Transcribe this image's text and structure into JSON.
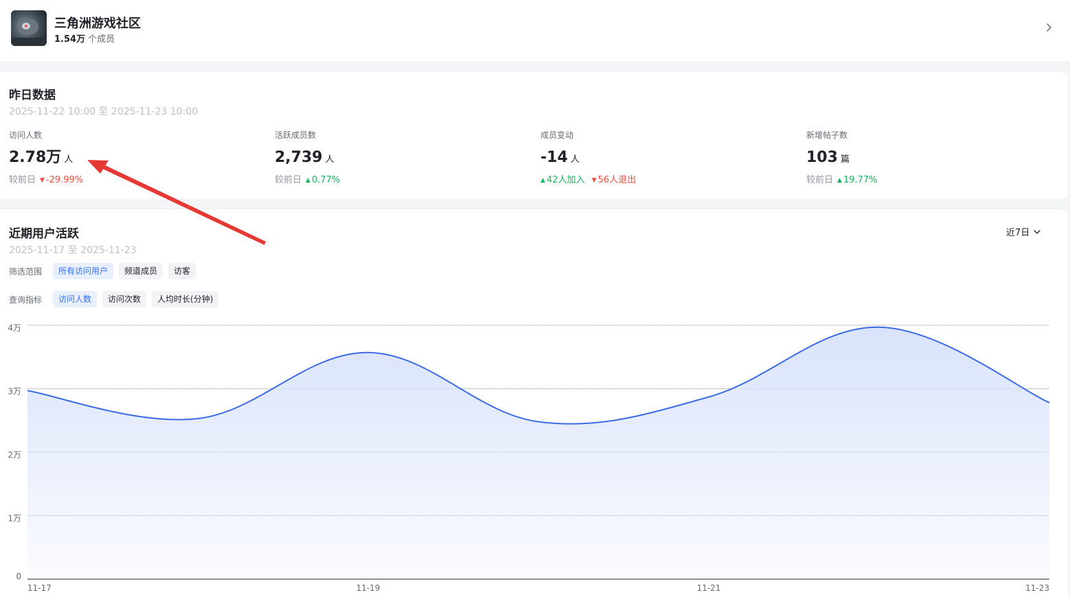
{
  "community": {
    "name": "三角洲游戏社区",
    "member_count": "1.54万",
    "member_suffix": "个成员"
  },
  "yesterday": {
    "title": "昨日数据",
    "range": "2025-11-22 10:00 至 2025-11-23 10:00",
    "metrics": [
      {
        "label": "访问人数",
        "value": "2.78万",
        "unit": "人",
        "compare_label": "较前日",
        "change": "-29.99%",
        "direction": "down"
      },
      {
        "label": "活跃成员数",
        "value": "2,739",
        "unit": "人",
        "compare_label": "较前日",
        "change": "0.77%",
        "direction": "up"
      },
      {
        "label": "成员变动",
        "value": "-14",
        "unit": "人",
        "joined": "42人加入",
        "left": "56人退出"
      },
      {
        "label": "新增帖子数",
        "value": "103",
        "unit": "篇",
        "compare_label": "较前日",
        "change": "19.77%",
        "direction": "up"
      }
    ]
  },
  "activity": {
    "title": "近期用户活跃",
    "range": "2025-11-17 至 2025-11-23",
    "period_select": "近7日",
    "filter_scope": {
      "label": "筛选范围",
      "options": [
        "所有访问用户",
        "频道成员",
        "访客"
      ],
      "selected": 0
    },
    "query_metric": {
      "label": "查询指标",
      "options": [
        "访问人数",
        "访问次数",
        "人均时长(分钟)"
      ],
      "selected": 0
    }
  },
  "chart_data": {
    "type": "area",
    "x": [
      "11-17",
      "11-18",
      "11-19",
      "11-20",
      "11-21",
      "11-22",
      "11-23"
    ],
    "series": [
      {
        "values": [
          29700,
          25300,
          35700,
          24800,
          28700,
          39700,
          27800
        ]
      }
    ],
    "x_tick_labels": [
      "11-17",
      "11-19",
      "11-21",
      "11-23"
    ],
    "y_ticks": [
      "0",
      "1万",
      "2万",
      "3万",
      "4万"
    ],
    "ylim": [
      0,
      40000
    ],
    "grid": true,
    "line_color": "#3b6ae3",
    "fill_color": "#d9e3fb"
  },
  "colors": {
    "accent": "#3370ff",
    "up": "#16b45d",
    "down": "#ef4b3d",
    "annotation_arrow": "#e53935"
  }
}
